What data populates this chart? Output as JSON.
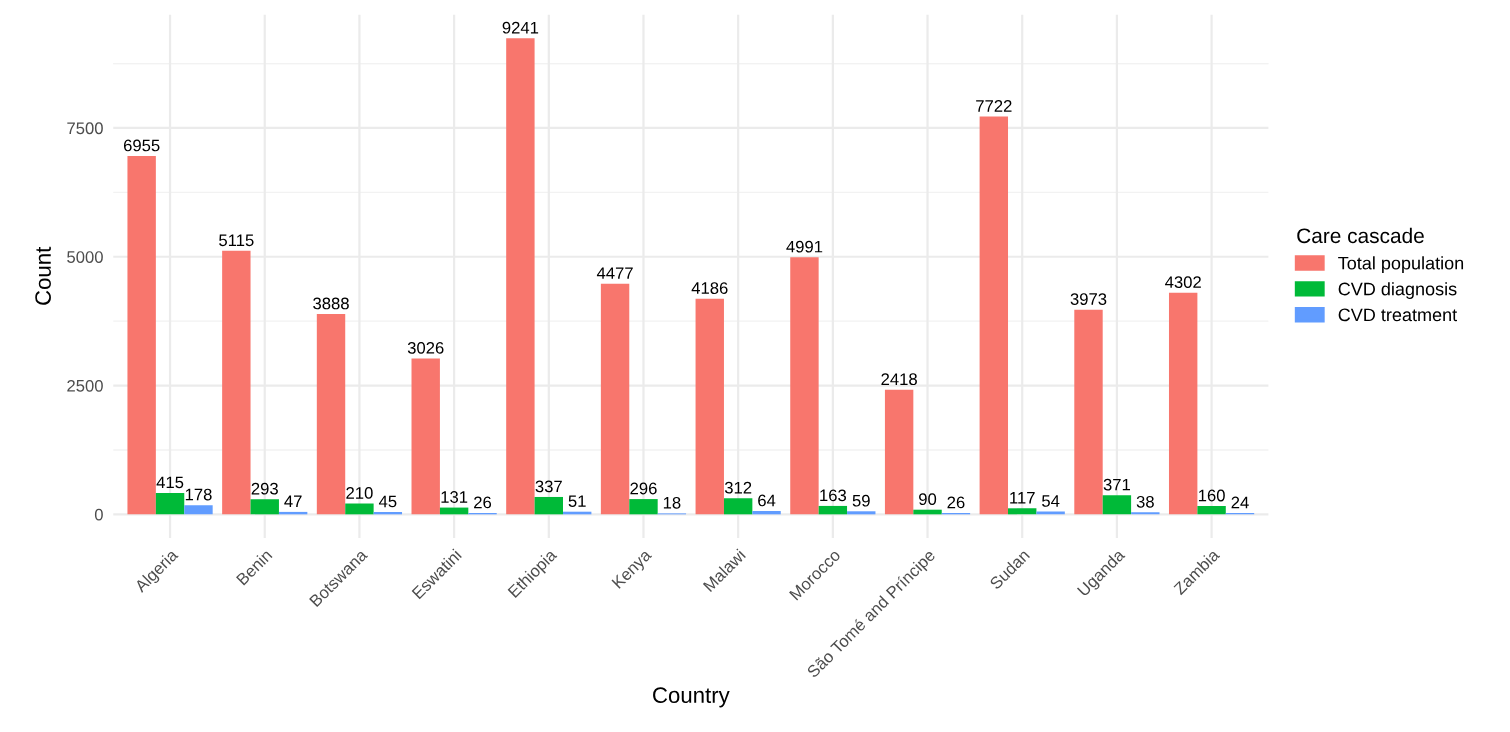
{
  "chart_data": {
    "type": "bar",
    "xlabel": "Country",
    "ylabel": "Count",
    "legend_title": "Care cascade",
    "categories": [
      "Algeria",
      "Benin",
      "Botswana",
      "Eswatini",
      "Ethiopia",
      "Kenya",
      "Malawi",
      "Morocco",
      "São Tomé and Príncipe",
      "Sudan",
      "Uganda",
      "Zambia"
    ],
    "series": [
      {
        "name": "Total population",
        "color": "#f8766d",
        "values": [
          6955,
          5115,
          3888,
          3026,
          9241,
          4477,
          4186,
          4991,
          2418,
          7722,
          3973,
          4302
        ]
      },
      {
        "name": "CVD diagnosis",
        "color": "#00ba38",
        "values": [
          415,
          293,
          210,
          131,
          337,
          296,
          312,
          163,
          90,
          117,
          371,
          160
        ]
      },
      {
        "name": "CVD treatment",
        "color": "#619cff",
        "values": [
          178,
          47,
          45,
          26,
          51,
          18,
          64,
          59,
          26,
          54,
          38,
          24
        ]
      }
    ],
    "ylim": [
      -460,
      9700
    ],
    "yticks": [
      0,
      2500,
      5000,
      7500
    ],
    "grid": true,
    "legend": "right",
    "data_labels": true
  }
}
